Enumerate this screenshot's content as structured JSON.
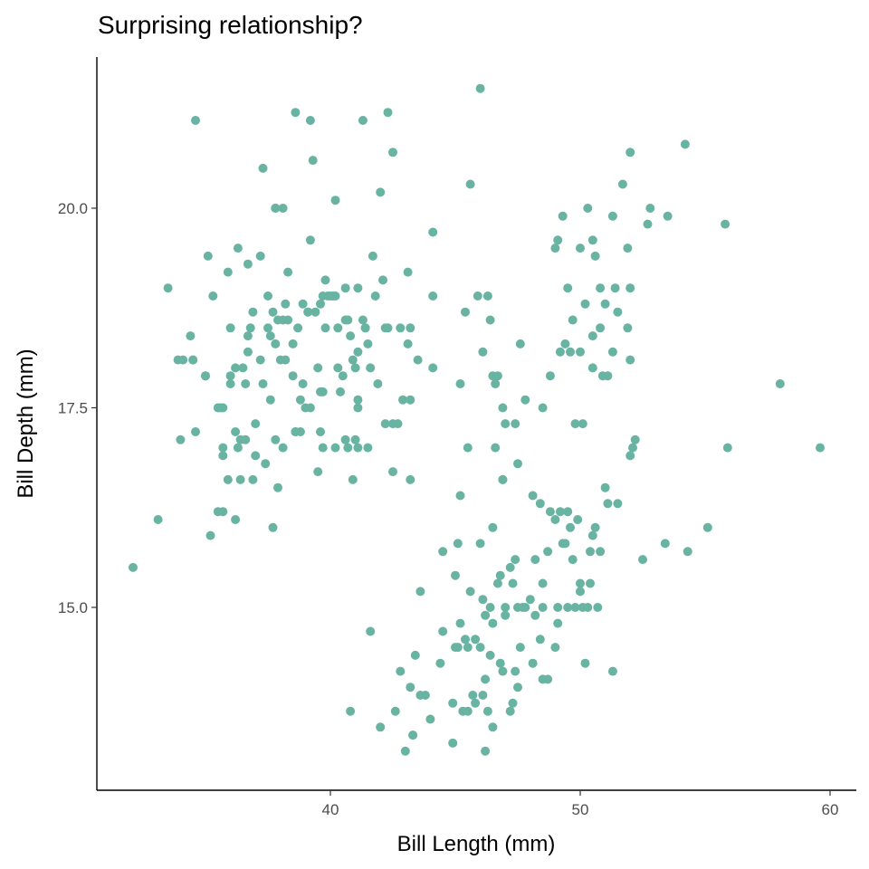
{
  "chart_data": {
    "type": "scatter",
    "title": "Surprising relationship?",
    "xlabel": "Bill Length (mm)",
    "ylabel": "Bill Depth (mm)",
    "xlim": [
      31.0,
      61.0
    ],
    "ylim": [
      12.5,
      22.0
    ],
    "xticks": [
      40,
      50,
      60
    ],
    "yticks": [
      15.0,
      17.5,
      20.0
    ],
    "xtick_labels": [
      "40",
      "50",
      "60"
    ],
    "ytick_labels": [
      "15.0",
      "17.5",
      "20.0"
    ],
    "grid": false,
    "point_color": "#69b3a2",
    "points": [
      [
        32.1,
        15.5
      ],
      [
        33.1,
        16.1
      ],
      [
        33.5,
        19.0
      ],
      [
        34.0,
        17.1
      ],
      [
        34.1,
        18.1
      ],
      [
        34.4,
        18.4
      ],
      [
        34.5,
        18.1
      ],
      [
        34.6,
        21.1
      ],
      [
        34.6,
        17.2
      ],
      [
        35.0,
        17.9
      ],
      [
        35.1,
        19.4
      ],
      [
        35.2,
        15.9
      ],
      [
        35.3,
        18.9
      ],
      [
        35.5,
        16.2
      ],
      [
        35.5,
        17.5
      ],
      [
        35.6,
        17.5
      ],
      [
        35.7,
        17.0
      ],
      [
        35.7,
        16.9
      ],
      [
        35.9,
        19.2
      ],
      [
        35.9,
        16.6
      ],
      [
        36.0,
        18.5
      ],
      [
        36.0,
        17.9
      ],
      [
        36.2,
        16.1
      ],
      [
        36.2,
        17.2
      ],
      [
        36.3,
        19.5
      ],
      [
        36.4,
        17.1
      ],
      [
        36.5,
        18.0
      ],
      [
        36.6,
        17.8
      ],
      [
        36.7,
        18.4
      ],
      [
        36.7,
        19.3
      ],
      [
        36.8,
        18.5
      ],
      [
        36.9,
        16.6
      ],
      [
        37.0,
        16.9
      ],
      [
        37.2,
        18.1
      ],
      [
        37.3,
        17.8
      ],
      [
        37.3,
        20.5
      ],
      [
        37.4,
        16.8
      ],
      [
        37.5,
        18.9
      ],
      [
        37.6,
        18.4
      ],
      [
        37.7,
        18.7
      ],
      [
        37.7,
        16.0
      ],
      [
        37.8,
        18.3
      ],
      [
        37.8,
        20.0
      ],
      [
        37.9,
        18.6
      ],
      [
        38.1,
        17.0
      ],
      [
        38.1,
        18.6
      ],
      [
        38.2,
        18.1
      ],
      [
        38.3,
        19.2
      ],
      [
        38.5,
        17.9
      ],
      [
        38.6,
        17.2
      ],
      [
        38.6,
        21.2
      ],
      [
        38.8,
        17.2
      ],
      [
        38.8,
        17.6
      ],
      [
        38.9,
        18.8
      ],
      [
        39.0,
        17.5
      ],
      [
        39.1,
        18.7
      ],
      [
        39.2,
        19.6
      ],
      [
        39.2,
        21.1
      ],
      [
        39.3,
        20.6
      ],
      [
        39.5,
        16.7
      ],
      [
        39.6,
        17.7
      ],
      [
        39.6,
        18.8
      ],
      [
        39.7,
        17.7
      ],
      [
        39.7,
        18.9
      ],
      [
        39.8,
        19.1
      ],
      [
        40.1,
        18.9
      ],
      [
        40.2,
        17.0
      ],
      [
        40.2,
        20.1
      ],
      [
        40.3,
        18.0
      ],
      [
        40.5,
        17.9
      ],
      [
        40.6,
        18.6
      ],
      [
        40.6,
        19.0
      ],
      [
        40.7,
        17.0
      ],
      [
        40.8,
        18.4
      ],
      [
        40.9,
        16.6
      ],
      [
        41.0,
        17.1
      ],
      [
        41.1,
        17.6
      ],
      [
        41.1,
        18.2
      ],
      [
        41.1,
        19.0
      ],
      [
        41.3,
        18.6
      ],
      [
        41.3,
        21.1
      ],
      [
        41.4,
        18.5
      ],
      [
        41.5,
        18.3
      ],
      [
        41.6,
        18.0
      ],
      [
        41.7,
        19.4
      ],
      [
        42.0,
        20.2
      ],
      [
        42.1,
        19.1
      ],
      [
        42.2,
        18.5
      ],
      [
        42.3,
        21.2
      ],
      [
        42.5,
        16.7
      ],
      [
        42.5,
        20.7
      ],
      [
        42.8,
        18.5
      ],
      [
        42.9,
        17.6
      ],
      [
        43.1,
        19.2
      ],
      [
        43.2,
        18.5
      ],
      [
        43.2,
        16.6
      ],
      [
        43.5,
        18.1
      ],
      [
        44.1,
        18.0
      ],
      [
        44.1,
        19.7
      ],
      [
        45.4,
        18.7
      ],
      [
        45.5,
        17.0
      ],
      [
        45.6,
        20.3
      ],
      [
        46.0,
        21.5
      ],
      [
        46.1,
        18.2
      ],
      [
        46.4,
        18.6
      ],
      [
        46.5,
        17.9
      ],
      [
        46.6,
        17.8
      ],
      [
        46.7,
        17.9
      ],
      [
        46.9,
        16.6
      ],
      [
        47.0,
        17.3
      ],
      [
        47.5,
        16.8
      ],
      [
        47.6,
        18.3
      ],
      [
        48.5,
        17.5
      ],
      [
        49.0,
        19.5
      ],
      [
        49.2,
        18.2
      ],
      [
        49.6,
        18.2
      ],
      [
        49.5,
        19.0
      ],
      [
        49.8,
        17.3
      ],
      [
        50.0,
        19.5
      ],
      [
        50.2,
        18.8
      ],
      [
        50.5,
        19.6
      ],
      [
        50.5,
        18.4
      ],
      [
        50.8,
        19.0
      ],
      [
        50.9,
        17.9
      ],
      [
        51.3,
        18.2
      ],
      [
        51.5,
        18.7
      ],
      [
        51.9,
        19.5
      ],
      [
        52.0,
        18.1
      ],
      [
        52.0,
        19.0
      ],
      [
        52.2,
        17.1
      ],
      [
        52.7,
        19.8
      ],
      [
        52.8,
        20.0
      ],
      [
        53.5,
        19.9
      ],
      [
        54.2,
        20.8
      ],
      [
        55.8,
        19.8
      ],
      [
        55.9,
        17.0
      ],
      [
        58.0,
        17.8
      ],
      [
        59.6,
        17.0
      ],
      [
        51.7,
        20.3
      ],
      [
        52.0,
        20.7
      ],
      [
        49.1,
        19.6
      ],
      [
        49.3,
        19.9
      ],
      [
        50.3,
        20.0
      ],
      [
        51.0,
        18.8
      ],
      [
        51.3,
        19.9
      ],
      [
        51.4,
        19.0
      ],
      [
        50.6,
        19.4
      ],
      [
        50.8,
        18.5
      ],
      [
        49.7,
        18.6
      ],
      [
        48.1,
        16.4
      ],
      [
        46.2,
        13.2
      ],
      [
        43.0,
        13.2
      ],
      [
        43.3,
        13.4
      ],
      [
        44.9,
        13.3
      ],
      [
        45.3,
        13.7
      ],
      [
        45.5,
        13.7
      ],
      [
        45.8,
        13.8
      ],
      [
        46.1,
        13.9
      ],
      [
        46.3,
        13.7
      ],
      [
        46.5,
        13.5
      ],
      [
        46.9,
        14.2
      ],
      [
        47.4,
        14.2
      ],
      [
        47.2,
        13.7
      ],
      [
        42.8,
        14.2
      ],
      [
        43.2,
        14.0
      ],
      [
        43.4,
        14.4
      ],
      [
        43.6,
        13.9
      ],
      [
        44.0,
        13.6
      ],
      [
        44.4,
        14.3
      ],
      [
        44.9,
        13.8
      ],
      [
        45.0,
        14.5
      ],
      [
        45.2,
        14.8
      ],
      [
        45.5,
        14.5
      ],
      [
        45.7,
        13.9
      ],
      [
        46.0,
        14.5
      ],
      [
        46.2,
        14.1
      ],
      [
        46.4,
        14.4
      ],
      [
        46.8,
        14.3
      ],
      [
        47.3,
        13.8
      ],
      [
        47.5,
        14.0
      ],
      [
        47.7,
        15.0
      ],
      [
        48.1,
        14.3
      ],
      [
        48.4,
        14.6
      ],
      [
        48.5,
        14.1
      ],
      [
        48.7,
        14.1
      ],
      [
        49.0,
        14.5
      ],
      [
        49.1,
        14.8
      ],
      [
        49.5,
        15.0
      ],
      [
        49.8,
        15.0
      ],
      [
        50.0,
        15.3
      ],
      [
        50.2,
        14.3
      ],
      [
        50.4,
        15.7
      ],
      [
        50.5,
        15.9
      ],
      [
        50.8,
        15.7
      ],
      [
        51.1,
        16.3
      ],
      [
        51.3,
        14.2
      ],
      [
        51.5,
        16.3
      ],
      [
        52.1,
        17.0
      ],
      [
        52.5,
        15.6
      ],
      [
        53.4,
        15.8
      ],
      [
        54.3,
        15.7
      ],
      [
        55.1,
        16.0
      ],
      [
        44.5,
        15.7
      ],
      [
        45.1,
        15.8
      ],
      [
        45.8,
        14.6
      ],
      [
        46.1,
        15.1
      ],
      [
        46.5,
        14.8
      ],
      [
        46.8,
        15.4
      ],
      [
        47.0,
        15.0
      ],
      [
        47.3,
        15.3
      ],
      [
        47.6,
        14.5
      ],
      [
        47.8,
        15.0
      ],
      [
        48.2,
        14.9
      ],
      [
        48.5,
        15.0
      ],
      [
        48.7,
        15.7
      ],
      [
        49.1,
        15.0
      ],
      [
        49.3,
        15.8
      ],
      [
        49.6,
        16.0
      ],
      [
        49.9,
        16.1
      ],
      [
        50.1,
        15.0
      ],
      [
        50.4,
        15.3
      ],
      [
        50.7,
        15.0
      ],
      [
        51.0,
        16.5
      ],
      [
        46.2,
        14.9
      ],
      [
        47.4,
        15.6
      ],
      [
        48.4,
        16.3
      ],
      [
        49.2,
        16.2
      ],
      [
        44.1,
        18.9
      ],
      [
        41.6,
        14.7
      ],
      [
        40.8,
        13.7
      ],
      [
        42.0,
        13.5
      ],
      [
        42.6,
        13.7
      ],
      [
        43.3,
        13.4
      ],
      [
        43.8,
        13.9
      ],
      [
        44.5,
        14.7
      ],
      [
        45.0,
        15.4
      ],
      [
        45.1,
        14.5
      ],
      [
        45.4,
        14.6
      ],
      [
        45.6,
        15.2
      ],
      [
        46.0,
        15.8
      ],
      [
        46.4,
        15.0
      ],
      [
        46.7,
        15.3
      ],
      [
        47.0,
        14.9
      ],
      [
        47.5,
        15.0
      ],
      [
        48.0,
        15.1
      ],
      [
        48.5,
        15.3
      ],
      [
        49.0,
        16.1
      ],
      [
        49.4,
        15.8
      ],
      [
        49.7,
        15.6
      ],
      [
        50.0,
        15.2
      ],
      [
        50.3,
        15.0
      ],
      [
        50.6,
        16.0
      ],
      [
        43.6,
        15.2
      ],
      [
        45.2,
        16.4
      ],
      [
        46.5,
        16.0
      ],
      [
        46.9,
        16.6
      ],
      [
        47.2,
        15.5
      ],
      [
        48.2,
        15.6
      ],
      [
        48.8,
        16.2
      ],
      [
        49.5,
        16.2
      ],
      [
        38.0,
        18.1
      ],
      [
        37.2,
        19.4
      ],
      [
        38.5,
        18.3
      ],
      [
        39.6,
        17.2
      ],
      [
        40.0,
        18.9
      ],
      [
        36.0,
        17.8
      ],
      [
        37.0,
        17.3
      ],
      [
        38.3,
        18.6
      ],
      [
        39.9,
        18.9
      ],
      [
        41.0,
        18.0
      ],
      [
        36.6,
        17.1
      ],
      [
        37.8,
        17.1
      ],
      [
        38.7,
        18.5
      ],
      [
        39.8,
        18.5
      ],
      [
        40.3,
        18.5
      ],
      [
        41.8,
        18.9
      ],
      [
        42.3,
        18.5
      ],
      [
        36.2,
        18.0
      ],
      [
        37.8,
        20.0
      ],
      [
        39.4,
        18.7
      ],
      [
        40.2,
        18.9
      ],
      [
        41.4,
        18.5
      ],
      [
        35.7,
        17.5
      ],
      [
        36.9,
        18.7
      ],
      [
        38.1,
        20.0
      ],
      [
        39.1,
        18.7
      ],
      [
        40.4,
        17.7
      ],
      [
        41.1,
        17.5
      ],
      [
        42.7,
        17.3
      ],
      [
        35.0,
        17.9
      ],
      [
        36.4,
        16.6
      ],
      [
        37.9,
        16.5
      ],
      [
        39.2,
        17.5
      ],
      [
        40.6,
        17.1
      ],
      [
        42.2,
        17.3
      ],
      [
        35.7,
        16.2
      ],
      [
        37.6,
        17.6
      ],
      [
        39.7,
        17.0
      ],
      [
        41.5,
        17.0
      ],
      [
        43.2,
        17.6
      ],
      [
        34.5,
        18.1
      ],
      [
        36.7,
        18.2
      ],
      [
        38.9,
        17.8
      ],
      [
        40.9,
        18.1
      ],
      [
        42.5,
        17.3
      ],
      [
        33.9,
        18.1
      ],
      [
        36.3,
        17.0
      ],
      [
        38.6,
        17.2
      ],
      [
        41.1,
        17.0
      ],
      [
        43.1,
        18.3
      ],
      [
        37.5,
        18.5
      ],
      [
        38.2,
        18.8
      ],
      [
        39.5,
        18.0
      ],
      [
        40.7,
        18.6
      ],
      [
        41.9,
        17.8
      ],
      [
        45.9,
        18.9
      ],
      [
        46.3,
        18.9
      ],
      [
        46.9,
        17.5
      ],
      [
        47.4,
        17.3
      ],
      [
        45.2,
        17.8
      ],
      [
        46.6,
        17.0
      ],
      [
        47.8,
        17.6
      ],
      [
        50.1,
        17.3
      ],
      [
        51.1,
        17.9
      ],
      [
        50.0,
        18.2
      ],
      [
        48.8,
        17.9
      ],
      [
        52.0,
        16.9
      ],
      [
        50.5,
        18.0
      ],
      [
        49.4,
        18.3
      ],
      [
        51.9,
        18.5
      ]
    ]
  }
}
